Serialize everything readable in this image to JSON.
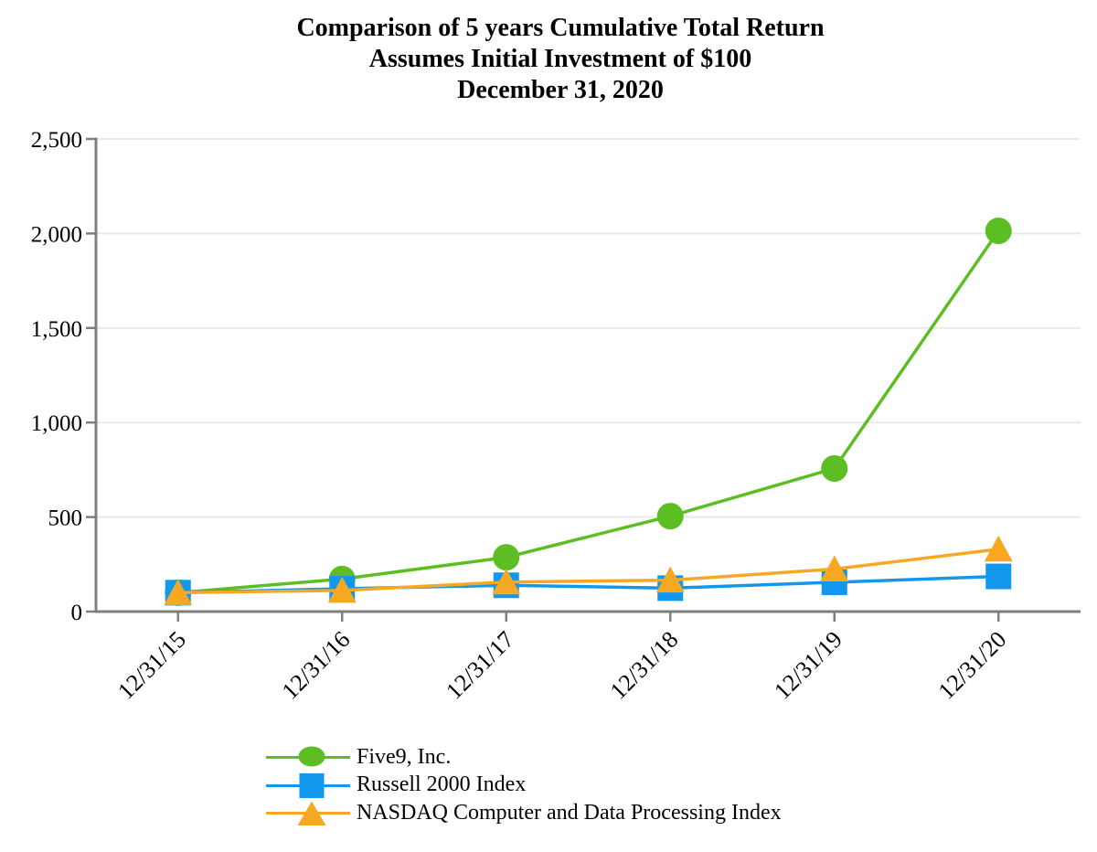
{
  "chart_data": {
    "type": "line",
    "title_lines": [
      "Comparison of 5 years Cumulative Total Return",
      "Assumes Initial Investment of $100",
      "December 31, 2020"
    ],
    "categories": [
      "12/31/15",
      "12/31/16",
      "12/31/17",
      "12/31/18",
      "12/31/19",
      "12/31/20"
    ],
    "series": [
      {
        "name": "Five9, Inc.",
        "marker": "circle",
        "color": "#5cbe22",
        "values": [
          100,
          172,
          287,
          505,
          757,
          2014
        ]
      },
      {
        "name": "Russell 2000 Index",
        "marker": "square",
        "color": "#1197ec",
        "values": [
          100,
          121,
          139,
          124,
          155,
          186
        ]
      },
      {
        "name": "NASDAQ Computer and Data Processing Index",
        "marker": "triangle",
        "color": "#f7a823",
        "values": [
          100,
          112,
          156,
          166,
          225,
          330
        ]
      }
    ],
    "y_axis": {
      "min": 0,
      "max": 2500,
      "tick_step": 500,
      "tick_labels": [
        "0",
        "500",
        "1,000",
        "1,500",
        "2,000",
        "2,500"
      ]
    },
    "x_axis": {
      "label_rotation_deg": -45
    },
    "grid": "horizontal",
    "legend_position": "bottom-left",
    "colors": {
      "axis": "#7f7f7f",
      "gridline": "#e9e9e9",
      "text": "#000000"
    }
  }
}
